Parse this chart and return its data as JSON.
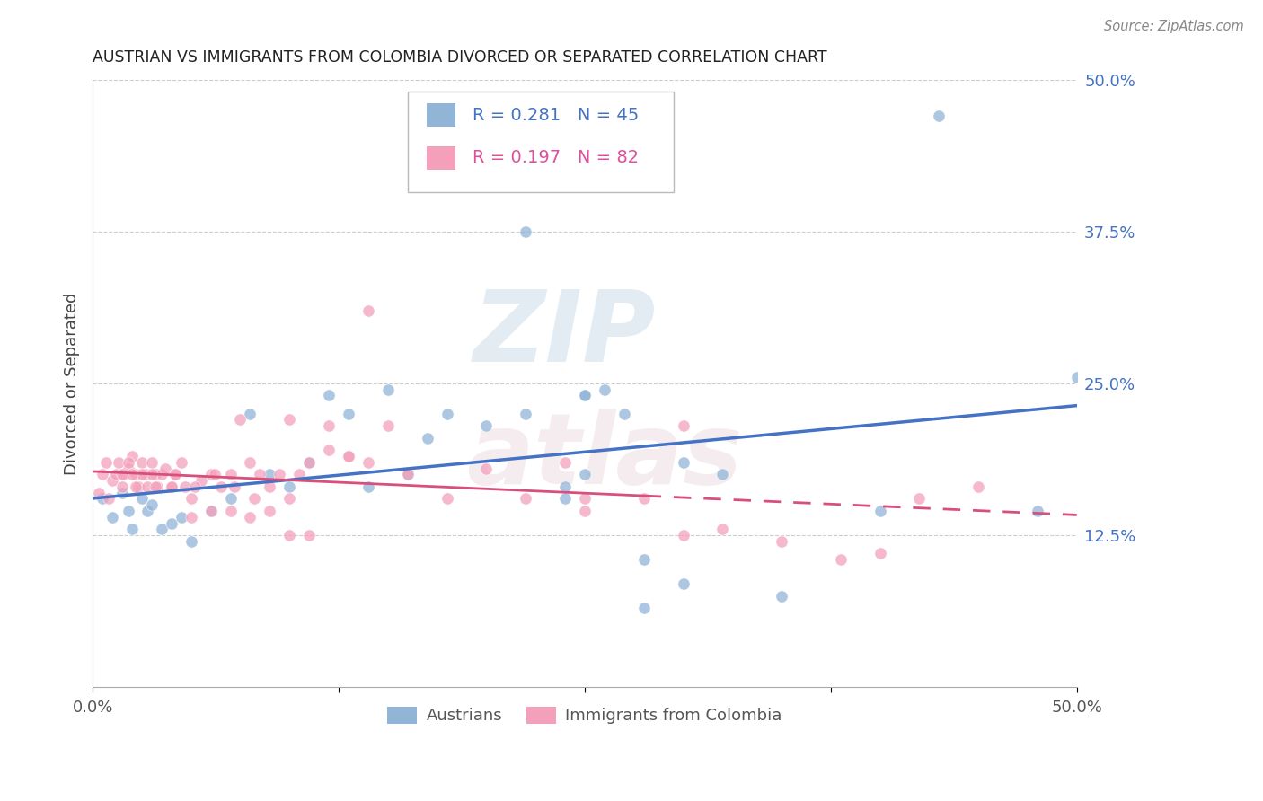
{
  "title": "AUSTRIAN VS IMMIGRANTS FROM COLOMBIA DIVORCED OR SEPARATED CORRELATION CHART",
  "source": "Source: ZipAtlas.com",
  "ylabel": "Divorced or Separated",
  "blue_color": "#92b4d7",
  "pink_color": "#f4a0bb",
  "trend_blue": "#4472c4",
  "trend_pink": "#d94f7c",
  "grid_color": "#cccccc",
  "background_color": "#ffffff",
  "legend_r1": "R = 0.281",
  "legend_n1": "N = 45",
  "legend_r2": "R = 0.197",
  "legend_n2": "N = 82",
  "aus_label": "Austrians",
  "col_label": "Immigrants from Colombia",
  "xmin": 0.0,
  "xmax": 0.5,
  "ymin": 0.0,
  "ymax": 0.5,
  "austrians_x": [
    0.005,
    0.01,
    0.015,
    0.018,
    0.02,
    0.025,
    0.028,
    0.03,
    0.035,
    0.04,
    0.045,
    0.05,
    0.06,
    0.07,
    0.08,
    0.09,
    0.1,
    0.11,
    0.12,
    0.13,
    0.14,
    0.15,
    0.16,
    0.17,
    0.18,
    0.2,
    0.22,
    0.24,
    0.25,
    0.27,
    0.28,
    0.3,
    0.22,
    0.24,
    0.25,
    0.3,
    0.32,
    0.35,
    0.25,
    0.26,
    0.28,
    0.4,
    0.43,
    0.48,
    0.5
  ],
  "austrians_y": [
    0.155,
    0.14,
    0.16,
    0.145,
    0.13,
    0.155,
    0.145,
    0.15,
    0.13,
    0.135,
    0.14,
    0.12,
    0.145,
    0.155,
    0.225,
    0.175,
    0.165,
    0.185,
    0.24,
    0.225,
    0.165,
    0.245,
    0.175,
    0.205,
    0.225,
    0.215,
    0.225,
    0.165,
    0.24,
    0.225,
    0.065,
    0.185,
    0.375,
    0.155,
    0.175,
    0.085,
    0.175,
    0.075,
    0.24,
    0.245,
    0.105,
    0.145,
    0.47,
    0.145,
    0.255
  ],
  "colombia_x": [
    0.003,
    0.005,
    0.007,
    0.008,
    0.01,
    0.012,
    0.013,
    0.015,
    0.016,
    0.018,
    0.02,
    0.022,
    0.023,
    0.025,
    0.027,
    0.028,
    0.03,
    0.032,
    0.033,
    0.035,
    0.037,
    0.04,
    0.042,
    0.045,
    0.047,
    0.05,
    0.055,
    0.06,
    0.065,
    0.07,
    0.075,
    0.08,
    0.085,
    0.09,
    0.095,
    0.1,
    0.105,
    0.11,
    0.12,
    0.13,
    0.14,
    0.15,
    0.16,
    0.18,
    0.2,
    0.22,
    0.24,
    0.25,
    0.28,
    0.3,
    0.32,
    0.35,
    0.38,
    0.4,
    0.42,
    0.45,
    0.1,
    0.12,
    0.13,
    0.14,
    0.05,
    0.06,
    0.07,
    0.08,
    0.09,
    0.03,
    0.04,
    0.025,
    0.02,
    0.015,
    0.018,
    0.022,
    0.032,
    0.042,
    0.052,
    0.062,
    0.072,
    0.082,
    0.25,
    0.3,
    0.1,
    0.11
  ],
  "colombia_y": [
    0.16,
    0.175,
    0.185,
    0.155,
    0.17,
    0.175,
    0.185,
    0.165,
    0.175,
    0.18,
    0.19,
    0.175,
    0.165,
    0.185,
    0.175,
    0.165,
    0.185,
    0.175,
    0.165,
    0.175,
    0.18,
    0.165,
    0.175,
    0.185,
    0.165,
    0.155,
    0.17,
    0.175,
    0.165,
    0.175,
    0.22,
    0.185,
    0.175,
    0.165,
    0.175,
    0.155,
    0.175,
    0.185,
    0.195,
    0.19,
    0.185,
    0.215,
    0.175,
    0.155,
    0.18,
    0.155,
    0.185,
    0.145,
    0.155,
    0.215,
    0.13,
    0.12,
    0.105,
    0.11,
    0.155,
    0.165,
    0.22,
    0.215,
    0.19,
    0.31,
    0.14,
    0.145,
    0.145,
    0.14,
    0.145,
    0.175,
    0.165,
    0.175,
    0.175,
    0.175,
    0.185,
    0.165,
    0.165,
    0.175,
    0.165,
    0.175,
    0.165,
    0.155,
    0.155,
    0.125,
    0.125,
    0.125
  ]
}
